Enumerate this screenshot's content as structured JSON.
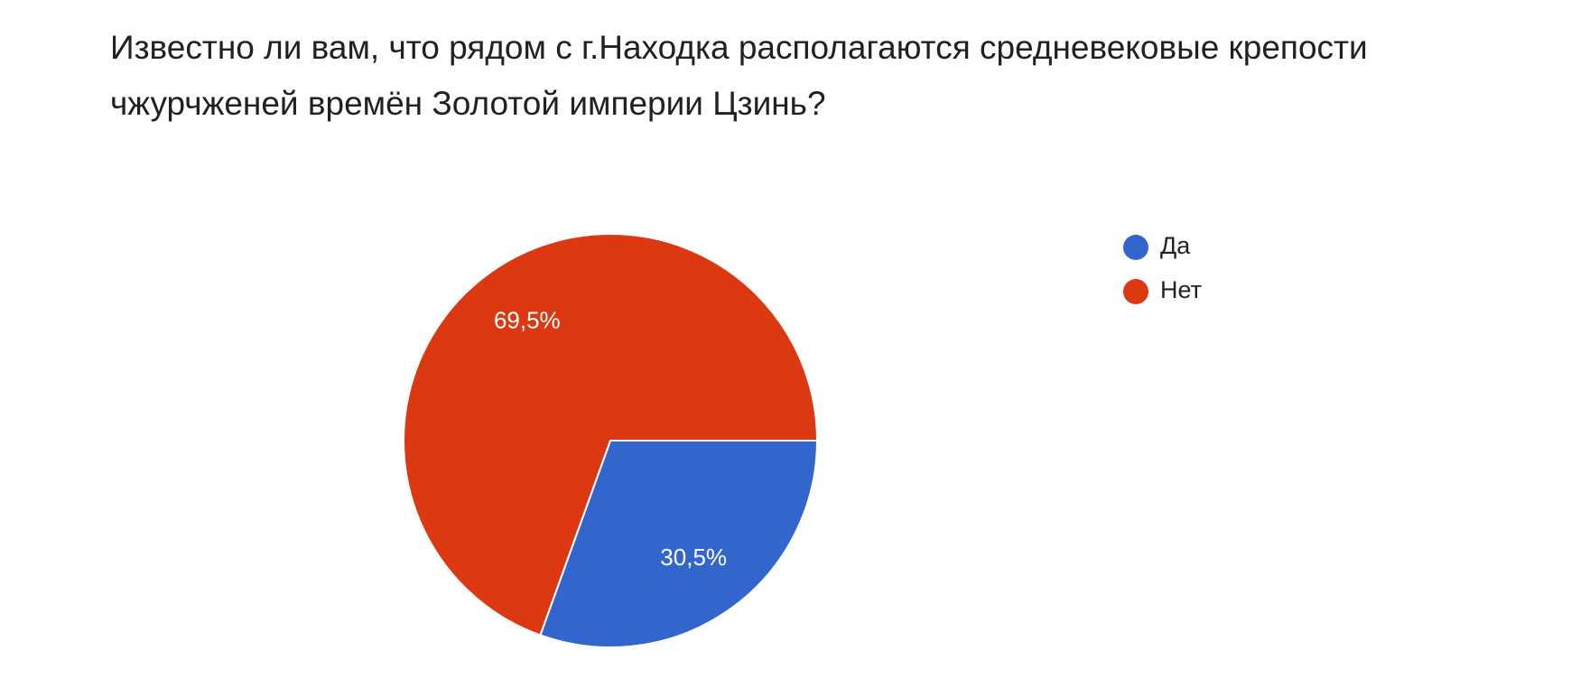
{
  "chart_data": {
    "type": "pie",
    "title": "Известно ли вам, что рядом с г.Находка располагаются средневековые крепости чжурчженей времён Золотой империи Цзинь?",
    "categories": [
      "Да",
      "Нет"
    ],
    "values": [
      30.5,
      69.5
    ],
    "value_labels": [
      "30,5%",
      "69,5%"
    ],
    "colors": [
      "#3366cc",
      "#dc3912"
    ],
    "legend": "right"
  }
}
